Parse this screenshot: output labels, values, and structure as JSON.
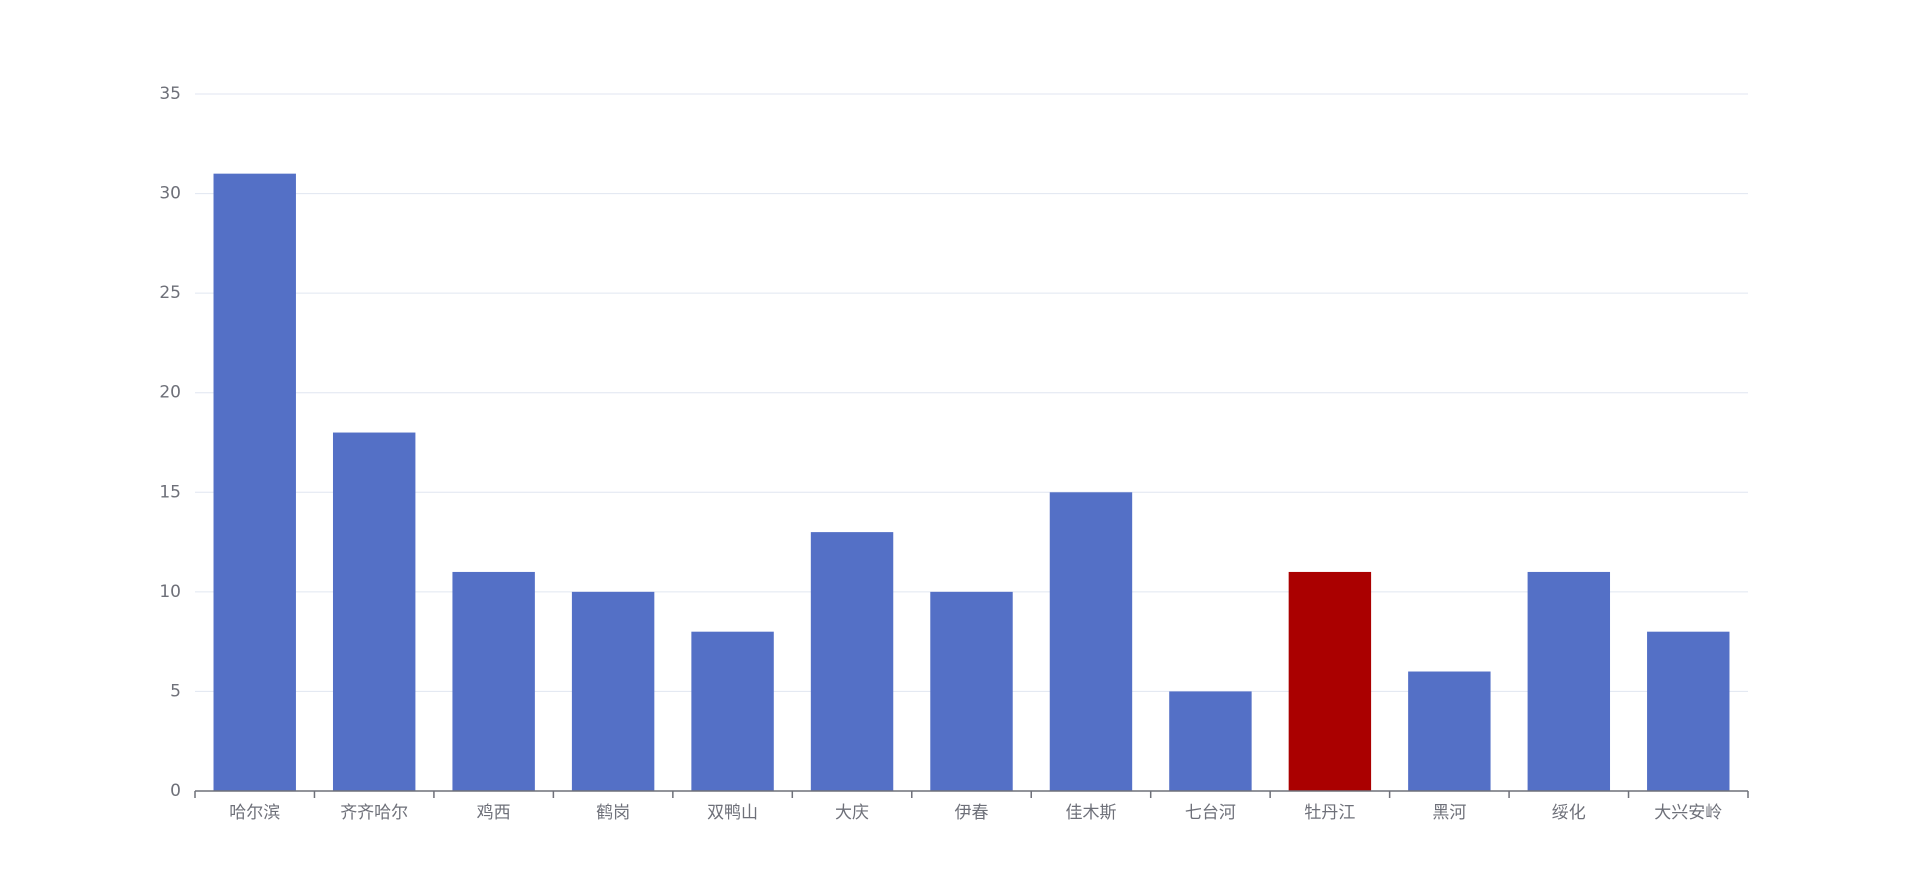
{
  "chart_data": {
    "type": "bar",
    "categories": [
      "哈尔滨",
      "齐齐哈尔",
      "鸡西",
      "鹤岗",
      "双鸭山",
      "大庆",
      "伊春",
      "佳木斯",
      "七台河",
      "牡丹江",
      "黑河",
      "绥化",
      "大兴安岭"
    ],
    "values": [
      31,
      18,
      11,
      10,
      8,
      13,
      10,
      15,
      5,
      11,
      6,
      11,
      8
    ],
    "title": "",
    "xlabel": "",
    "ylabel": "",
    "ylim": [
      0,
      35
    ],
    "yticks": [
      0,
      5,
      10,
      15,
      20,
      25,
      30,
      35
    ],
    "highlight_index": 9,
    "grid": true,
    "colors": {
      "bar": "#5470c6",
      "highlight": "#aa0000",
      "grid": "#e0e6f1",
      "axis": "#6e7079",
      "label": "#6e7079"
    }
  }
}
